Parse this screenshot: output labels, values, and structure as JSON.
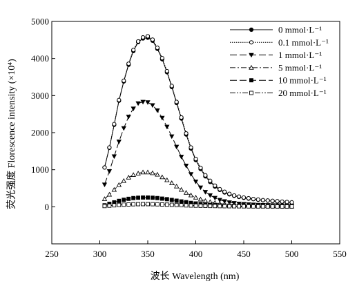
{
  "chart_data": {
    "type": "line",
    "title": "",
    "xlabel": "波长 Wavelength (nm)",
    "ylabel": "荧光强度 Florescence intensity (×10⁴)",
    "xlim": [
      250,
      550
    ],
    "ylim": [
      -1000,
      5000
    ],
    "x_ticks": [
      250,
      300,
      350,
      400,
      450,
      500,
      550
    ],
    "y_ticks": [
      0,
      1000,
      2000,
      3000,
      4000,
      5000
    ],
    "grid": false,
    "legend_position": "top-right",
    "x": [
      305,
      310,
      315,
      320,
      325,
      330,
      335,
      340,
      345,
      350,
      355,
      360,
      365,
      370,
      375,
      380,
      385,
      390,
      395,
      400,
      405,
      410,
      415,
      420,
      425,
      430,
      435,
      440,
      445,
      450,
      455,
      460,
      465,
      470,
      475,
      480,
      485,
      490,
      495,
      500
    ],
    "series": [
      {
        "name": "0 mmol·L⁻¹",
        "marker": "filled-circle",
        "dash": "solid",
        "values": [
          1060,
          1590,
          2210,
          2860,
          3380,
          3830,
          4200,
          4440,
          4540,
          4560,
          4480,
          4260,
          3980,
          3630,
          3230,
          2800,
          2380,
          1950,
          1570,
          1260,
          1020,
          820,
          670,
          545,
          455,
          385,
          335,
          295,
          265,
          240,
          220,
          205,
          190,
          175,
          165,
          155,
          145,
          135,
          125,
          115
        ]
      },
      {
        "name": "0.1 mmol·L⁻¹",
        "marker": "open-circle",
        "dash": "dotted",
        "values": [
          1060,
          1600,
          2230,
          2880,
          3400,
          3860,
          4230,
          4460,
          4570,
          4600,
          4510,
          4290,
          4010,
          3660,
          3260,
          2830,
          2410,
          1980,
          1600,
          1290,
          1050,
          850,
          700,
          570,
          475,
          405,
          350,
          305,
          275,
          250,
          230,
          210,
          195,
          180,
          170,
          160,
          150,
          140,
          130,
          120
        ]
      },
      {
        "name": "1 mmol·L⁻¹",
        "marker": "filled-triangle-down",
        "dash": "long-dash",
        "values": [
          600,
          960,
          1360,
          1760,
          2120,
          2430,
          2650,
          2790,
          2830,
          2820,
          2740,
          2600,
          2400,
          2160,
          1900,
          1620,
          1350,
          1110,
          880,
          680,
          520,
          400,
          310,
          240,
          185,
          150,
          120,
          100,
          85,
          75,
          65,
          58,
          52,
          48,
          44,
          40,
          37,
          34,
          31,
          28
        ]
      },
      {
        "name": "5 mmol·L⁻¹",
        "marker": "open-triangle-up",
        "dash": "dash-dot",
        "values": [
          210,
          330,
          460,
          590,
          700,
          790,
          860,
          900,
          930,
          930,
          910,
          870,
          800,
          720,
          640,
          550,
          460,
          380,
          310,
          250,
          200,
          160,
          130,
          105,
          85,
          70,
          58,
          50,
          44,
          40,
          36,
          33,
          30,
          28,
          26,
          24,
          22,
          20,
          18,
          16
        ]
      },
      {
        "name": "10 mmol·L⁻¹",
        "marker": "filled-square",
        "dash": "long-dash",
        "values": [
          40,
          80,
          120,
          160,
          190,
          215,
          235,
          245,
          250,
          250,
          245,
          235,
          220,
          205,
          185,
          165,
          145,
          125,
          105,
          90,
          75,
          62,
          52,
          44,
          37,
          32,
          28,
          25,
          22,
          20,
          18,
          17,
          16,
          15,
          14,
          13,
          12,
          11,
          10,
          10
        ]
      },
      {
        "name": "20 mmol·L⁻¹",
        "marker": "open-square",
        "dash": "dash-dot-dot",
        "values": [
          20,
          30,
          40,
          50,
          57,
          63,
          68,
          71,
          72,
          72,
          70,
          67,
          63,
          58,
          53,
          48,
          43,
          38,
          34,
          30,
          27,
          24,
          22,
          20,
          18,
          16,
          15,
          14,
          13,
          12,
          11,
          10,
          10,
          10,
          9,
          9,
          9,
          8,
          8,
          8
        ]
      }
    ]
  }
}
